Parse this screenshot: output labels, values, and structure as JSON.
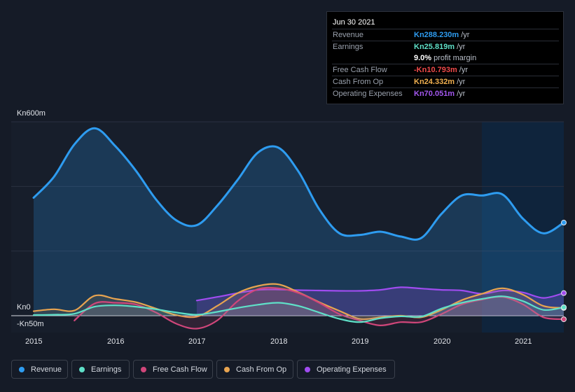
{
  "tooltip": {
    "date": "Jun 30 2021",
    "rows": [
      {
        "label": "Revenue",
        "value": "Kn288.230m",
        "unit": "/yr",
        "color": "#2e9cf0"
      },
      {
        "label": "Earnings",
        "value": "Kn25.819m",
        "unit": "/yr",
        "color": "#5fe0c8"
      },
      {
        "label": "",
        "value": "9.0%",
        "unit": "profit margin",
        "color": "#ffffff"
      },
      {
        "label": "Free Cash Flow",
        "value": "-Kn10.793m",
        "unit": "/yr",
        "color": "#f04a4a"
      },
      {
        "label": "Cash From Op",
        "value": "Kn24.332m",
        "unit": "/yr",
        "color": "#f0b050"
      },
      {
        "label": "Operating Expenses",
        "value": "Kn70.051m",
        "unit": "/yr",
        "color": "#a458f0"
      }
    ]
  },
  "legend": [
    {
      "label": "Revenue",
      "color": "#2e9cf0"
    },
    {
      "label": "Earnings",
      "color": "#5fe0c8"
    },
    {
      "label": "Free Cash Flow",
      "color": "#d0467a"
    },
    {
      "label": "Cash From Op",
      "color": "#e8a450"
    },
    {
      "label": "Operating Expenses",
      "color": "#a04cf0"
    }
  ],
  "chart_data": {
    "type": "area",
    "y_tick_labels": [
      "Kn600m",
      "Kn0",
      "-Kn50m"
    ],
    "x_tick_labels": [
      "2015",
      "2016",
      "2017",
      "2018",
      "2019",
      "2020",
      "2021"
    ],
    "ylim": [
      -50,
      600
    ],
    "grid": true,
    "series": [
      {
        "name": "Revenue",
        "color": "#2e9cf0",
        "x": [
          2015.0,
          2015.25,
          2015.5,
          2015.75,
          2016.0,
          2016.25,
          2016.5,
          2016.75,
          2017.0,
          2017.25,
          2017.5,
          2017.75,
          2018.0,
          2018.25,
          2018.5,
          2018.75,
          2019.0,
          2019.25,
          2019.5,
          2019.75,
          2020.0,
          2020.25,
          2020.5,
          2020.75,
          2021.0,
          2021.25,
          2021.5
        ],
        "y": [
          365,
          430,
          530,
          580,
          525,
          450,
          360,
          295,
          280,
          340,
          420,
          505,
          520,
          445,
          330,
          255,
          250,
          260,
          245,
          240,
          315,
          372,
          372,
          375,
          300,
          255,
          288
        ]
      },
      {
        "name": "Earnings",
        "color": "#5fe0c8",
        "x": [
          2015.0,
          2015.25,
          2015.5,
          2015.75,
          2016.0,
          2016.25,
          2016.5,
          2016.75,
          2017.0,
          2017.25,
          2017.5,
          2017.75,
          2018.0,
          2018.25,
          2018.5,
          2018.75,
          2019.0,
          2019.25,
          2019.5,
          2019.75,
          2020.0,
          2020.25,
          2020.5,
          2020.75,
          2021.0,
          2021.25,
          2021.5
        ],
        "y": [
          2,
          3,
          6,
          28,
          32,
          28,
          20,
          10,
          3,
          12,
          24,
          34,
          40,
          30,
          10,
          -10,
          -20,
          -8,
          -2,
          -3,
          22,
          40,
          52,
          60,
          45,
          18,
          26
        ]
      },
      {
        "name": "Free Cash Flow",
        "color": "#d0467a",
        "x": [
          2015.5,
          2015.75,
          2016.0,
          2016.25,
          2016.5,
          2016.75,
          2017.0,
          2017.25,
          2017.5,
          2017.75,
          2018.0,
          2018.25,
          2018.5,
          2018.75,
          2019.0,
          2019.25,
          2019.5,
          2019.75,
          2020.0,
          2020.25,
          2020.5,
          2020.75,
          2021.0,
          2021.25,
          2021.5
        ],
        "y": [
          -15,
          38,
          40,
          35,
          10,
          -25,
          -40,
          -15,
          45,
          82,
          85,
          70,
          40,
          5,
          -15,
          -30,
          -20,
          -20,
          5,
          35,
          50,
          58,
          35,
          -5,
          -11
        ]
      },
      {
        "name": "Cash From Op",
        "color": "#e8a450",
        "x": [
          2015.0,
          2015.25,
          2015.5,
          2015.75,
          2016.0,
          2016.25,
          2016.5,
          2016.75,
          2017.0,
          2017.25,
          2017.5,
          2017.75,
          2018.0,
          2018.25,
          2018.5,
          2018.75,
          2019.0,
          2019.25,
          2019.5,
          2019.75,
          2020.0,
          2020.25,
          2020.5,
          2020.75,
          2021.0,
          2021.25,
          2021.5
        ],
        "y": [
          14,
          20,
          16,
          62,
          52,
          42,
          22,
          2,
          -3,
          30,
          70,
          92,
          97,
          72,
          42,
          15,
          -10,
          -5,
          0,
          -5,
          18,
          48,
          68,
          85,
          65,
          30,
          24
        ]
      },
      {
        "name": "Operating Expenses",
        "color": "#a04cf0",
        "x": [
          2017.0,
          2017.25,
          2017.5,
          2017.75,
          2018.0,
          2018.25,
          2018.5,
          2018.75,
          2019.0,
          2019.25,
          2019.5,
          2019.75,
          2020.0,
          2020.25,
          2020.5,
          2020.75,
          2021.0,
          2021.25,
          2021.5
        ],
        "y": [
          47,
          58,
          70,
          80,
          81,
          79,
          78,
          77,
          77,
          80,
          88,
          84,
          80,
          78,
          68,
          78,
          72,
          55,
          70
        ]
      }
    ]
  }
}
